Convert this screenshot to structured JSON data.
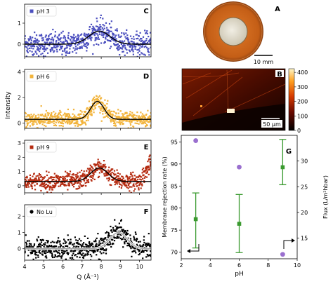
{
  "chart_data": [
    {
      "type": "scatter",
      "panel": "C",
      "legend": "pH 3",
      "color": "#4b4fbf",
      "fit": {
        "baseline": 0.0,
        "peak_x": 7.9,
        "peak_y": 0.62,
        "width": 0.55
      },
      "xlim": [
        4,
        10.6
      ],
      "ylim": [
        -0.6,
        1.9
      ],
      "yticks": [
        "0",
        "1"
      ],
      "noise": 0.28
    },
    {
      "type": "scatter",
      "panel": "D",
      "legend": "pH 6",
      "color": "#f2b43c",
      "fit": {
        "baseline": 0.3,
        "peak_x": 7.8,
        "peak_y": 1.4,
        "width": 0.35
      },
      "xlim": [
        4,
        10.6
      ],
      "ylim": [
        -0.4,
        4.2
      ],
      "yticks": [
        "0",
        "2",
        "4"
      ],
      "noise": 0.32
    },
    {
      "type": "scatter",
      "panel": "E",
      "legend": "pH 9",
      "color": "#b52b10",
      "fit": {
        "baseline": 0.3,
        "peak_x": 7.9,
        "peak_y": 0.95,
        "width": 0.45
      },
      "xlim": [
        4,
        10.6
      ],
      "ylim": [
        -0.5,
        3.2
      ],
      "yticks": [
        "0",
        "1",
        "2",
        "3"
      ],
      "noise": 0.3
    },
    {
      "type": "scatter",
      "panel": "F",
      "legend": "No Lu",
      "color": "#000000",
      "fit": {
        "baseline": 0.0,
        "peak_x": 8.9,
        "peak_y": 1.0,
        "width": 0.45
      },
      "xlim": [
        4,
        10.6
      ],
      "ylim": [
        -0.7,
        2.7
      ],
      "yticks": [
        "0",
        "1",
        "2"
      ],
      "noise": 0.32
    },
    {
      "type": "scatter",
      "panel": "G",
      "xlabel": "pH",
      "ylabel": "Membrane rejection rate (%)",
      "y2label": "Flux (L/m²hbar)",
      "xlim": [
        2,
        10
      ],
      "ylim": [
        68.5,
        96.5
      ],
      "y2lim": [
        11.0,
        35.0
      ],
      "xticks": [
        2,
        4,
        6,
        8,
        10
      ],
      "yticks": [
        70,
        75,
        80,
        85,
        90,
        95
      ],
      "y2ticks": [
        15,
        20,
        25,
        30
      ],
      "rejection": {
        "x": [
          3,
          6,
          9
        ],
        "y": [
          95.3,
          89.3,
          69.5
        ],
        "color": "#9a6fcf"
      },
      "flux": {
        "x": [
          3,
          6,
          9
        ],
        "y": [
          18.7,
          17.8,
          28.8
        ],
        "err_low": [
          13.1,
          12.2,
          25.4
        ],
        "err_high": [
          23.8,
          23.5,
          34.2
        ],
        "color": "#3a9a2f"
      }
    }
  ],
  "shared_axis": {
    "xlabel": "Q (Å⁻¹)",
    "xticks": [
      4,
      5,
      6,
      7,
      8,
      9,
      10
    ],
    "ylabel": "Intensity"
  },
  "photo": {
    "label": "A",
    "scale_bar": "10 mm"
  },
  "afm": {
    "label": "B",
    "scale_bar": "50 µm",
    "colorbar_ticks": [
      "0",
      "100",
      "200",
      "300",
      "400"
    ]
  }
}
